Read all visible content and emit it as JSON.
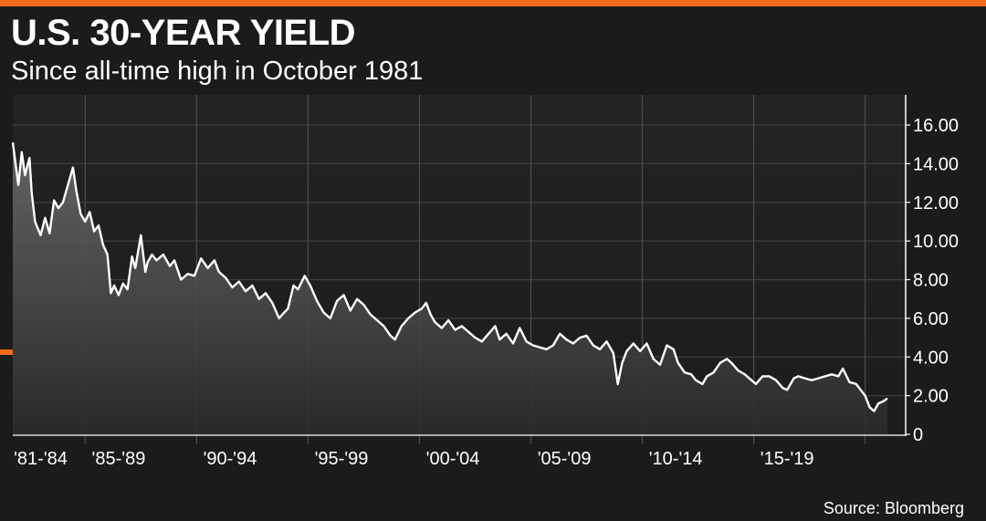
{
  "header": {
    "title": "U.S. 30-YEAR YIELD",
    "subtitle": "Since all-time high in October 1981"
  },
  "footer": {
    "source": "Source: Bloomberg"
  },
  "colors": {
    "accent": "#f26a1b",
    "background": "#1b1b1b",
    "line": "#ffffff"
  },
  "chart_data": {
    "type": "area",
    "title": "U.S. 30-YEAR YIELD",
    "subtitle": "Since all-time high in October 1981",
    "xlabel": "",
    "ylabel": "",
    "ylim": [
      0,
      16
    ],
    "xlim": [
      1981.75,
      2021.0
    ],
    "grid": true,
    "legend": "none",
    "y_axis_side": "right",
    "y_ticks": [
      {
        "value": 0,
        "label": "0"
      },
      {
        "value": 2,
        "label": "2.00"
      },
      {
        "value": 4,
        "label": "4.00"
      },
      {
        "value": 6,
        "label": "6.00"
      },
      {
        "value": 8,
        "label": "8.00"
      },
      {
        "value": 10,
        "label": "10.00"
      },
      {
        "value": 12,
        "label": "12.00"
      },
      {
        "value": 14,
        "label": "14.00"
      },
      {
        "value": 16,
        "label": "16.00"
      }
    ],
    "x_ticks": [
      {
        "value": 1983.0,
        "label": "'81-'84"
      },
      {
        "value": 1986.5,
        "label": "'85-'89"
      },
      {
        "value": 1991.5,
        "label": "'90-'94"
      },
      {
        "value": 1996.5,
        "label": "'95-'99"
      },
      {
        "value": 2001.5,
        "label": "'00-'04"
      },
      {
        "value": 2006.5,
        "label": "'05-'09"
      },
      {
        "value": 2011.5,
        "label": "'10-'14"
      },
      {
        "value": 2016.5,
        "label": "'15-'19"
      }
    ],
    "x_gridlines": [
      1985,
      1990,
      1995,
      2000,
      2005,
      2010,
      2015,
      2020
    ],
    "series": [
      {
        "name": "",
        "x": [
          1981.75,
          1982.0,
          1982.15,
          1982.3,
          1982.5,
          1982.6,
          1982.75,
          1983.0,
          1983.2,
          1983.4,
          1983.6,
          1983.8,
          1984.0,
          1984.2,
          1984.45,
          1984.6,
          1984.8,
          1985.0,
          1985.2,
          1985.4,
          1985.6,
          1985.8,
          1986.0,
          1986.15,
          1986.3,
          1986.5,
          1986.7,
          1986.9,
          1987.1,
          1987.25,
          1987.5,
          1987.7,
          1987.8,
          1988.0,
          1988.2,
          1988.5,
          1988.8,
          1989.0,
          1989.3,
          1989.6,
          1989.9,
          1990.2,
          1990.5,
          1990.8,
          1991.0,
          1991.3,
          1991.6,
          1991.9,
          1992.2,
          1992.5,
          1992.8,
          1993.1,
          1993.4,
          1993.7,
          1993.85,
          1994.1,
          1994.35,
          1994.55,
          1994.85,
          1995.1,
          1995.4,
          1995.7,
          1996.0,
          1996.3,
          1996.6,
          1996.9,
          1997.2,
          1997.5,
          1997.8,
          1998.1,
          1998.4,
          1998.7,
          1998.9,
          1999.2,
          1999.5,
          1999.8,
          2000.1,
          2000.3,
          2000.5,
          2000.7,
          2001.0,
          2001.3,
          2001.6,
          2001.9,
          2002.2,
          2002.5,
          2002.8,
          2003.1,
          2003.4,
          2003.6,
          2003.9,
          2004.2,
          2004.5,
          2004.8,
          2005.1,
          2005.4,
          2005.7,
          2006.0,
          2006.3,
          2006.6,
          2006.9,
          2007.2,
          2007.5,
          2007.8,
          2008.1,
          2008.4,
          2008.7,
          2008.9,
          2009.1,
          2009.3,
          2009.6,
          2009.9,
          2010.2,
          2010.5,
          2010.8,
          2011.1,
          2011.4,
          2011.6,
          2011.9,
          2012.2,
          2012.4,
          2012.7,
          2012.9,
          2013.2,
          2013.5,
          2013.8,
          2014.0,
          2014.3,
          2014.6,
          2014.9,
          2015.1,
          2015.4,
          2015.7,
          2016.0,
          2016.3,
          2016.5,
          2016.8,
          2017.0,
          2017.3,
          2017.6,
          2017.9,
          2018.2,
          2018.5,
          2018.8,
          2019.0,
          2019.3,
          2019.6,
          2019.8,
          2020.0,
          2020.2,
          2020.4,
          2020.6,
          2020.8,
          2021.0
        ],
        "y": [
          15.1,
          12.9,
          14.6,
          13.4,
          14.3,
          12.5,
          11.0,
          10.3,
          11.2,
          10.4,
          12.1,
          11.7,
          12.0,
          12.8,
          13.8,
          12.6,
          11.4,
          11.0,
          11.5,
          10.5,
          10.8,
          9.8,
          9.3,
          7.3,
          7.7,
          7.2,
          7.8,
          7.5,
          9.2,
          8.6,
          10.3,
          8.4,
          8.9,
          9.3,
          9.0,
          9.3,
          8.7,
          9.0,
          8.0,
          8.3,
          8.2,
          9.1,
          8.6,
          9.0,
          8.4,
          8.1,
          7.6,
          7.9,
          7.4,
          7.7,
          7.0,
          7.3,
          6.8,
          6.0,
          6.2,
          6.5,
          7.7,
          7.5,
          8.2,
          7.7,
          6.9,
          6.3,
          6.0,
          6.9,
          7.2,
          6.4,
          7.0,
          6.7,
          6.2,
          5.9,
          5.6,
          5.1,
          4.9,
          5.6,
          6.0,
          6.3,
          6.5,
          6.8,
          6.2,
          5.8,
          5.5,
          5.9,
          5.4,
          5.6,
          5.3,
          5.0,
          4.8,
          5.2,
          5.6,
          4.9,
          5.2,
          4.7,
          5.5,
          4.8,
          4.6,
          4.5,
          4.4,
          4.6,
          5.2,
          4.9,
          4.7,
          5.0,
          5.1,
          4.6,
          4.4,
          4.8,
          4.2,
          2.6,
          3.7,
          4.3,
          4.7,
          4.3,
          4.7,
          3.9,
          3.6,
          4.6,
          4.4,
          3.7,
          3.2,
          3.1,
          2.8,
          2.6,
          3.0,
          3.2,
          3.7,
          3.9,
          3.7,
          3.3,
          3.1,
          2.8,
          2.6,
          3.0,
          3.0,
          2.8,
          2.4,
          2.3,
          2.9,
          3.0,
          2.9,
          2.8,
          2.9,
          3.0,
          3.1,
          3.0,
          3.4,
          2.7,
          2.6,
          2.3,
          2.0,
          1.4,
          1.2,
          1.6,
          1.7,
          1.85
        ]
      }
    ]
  }
}
